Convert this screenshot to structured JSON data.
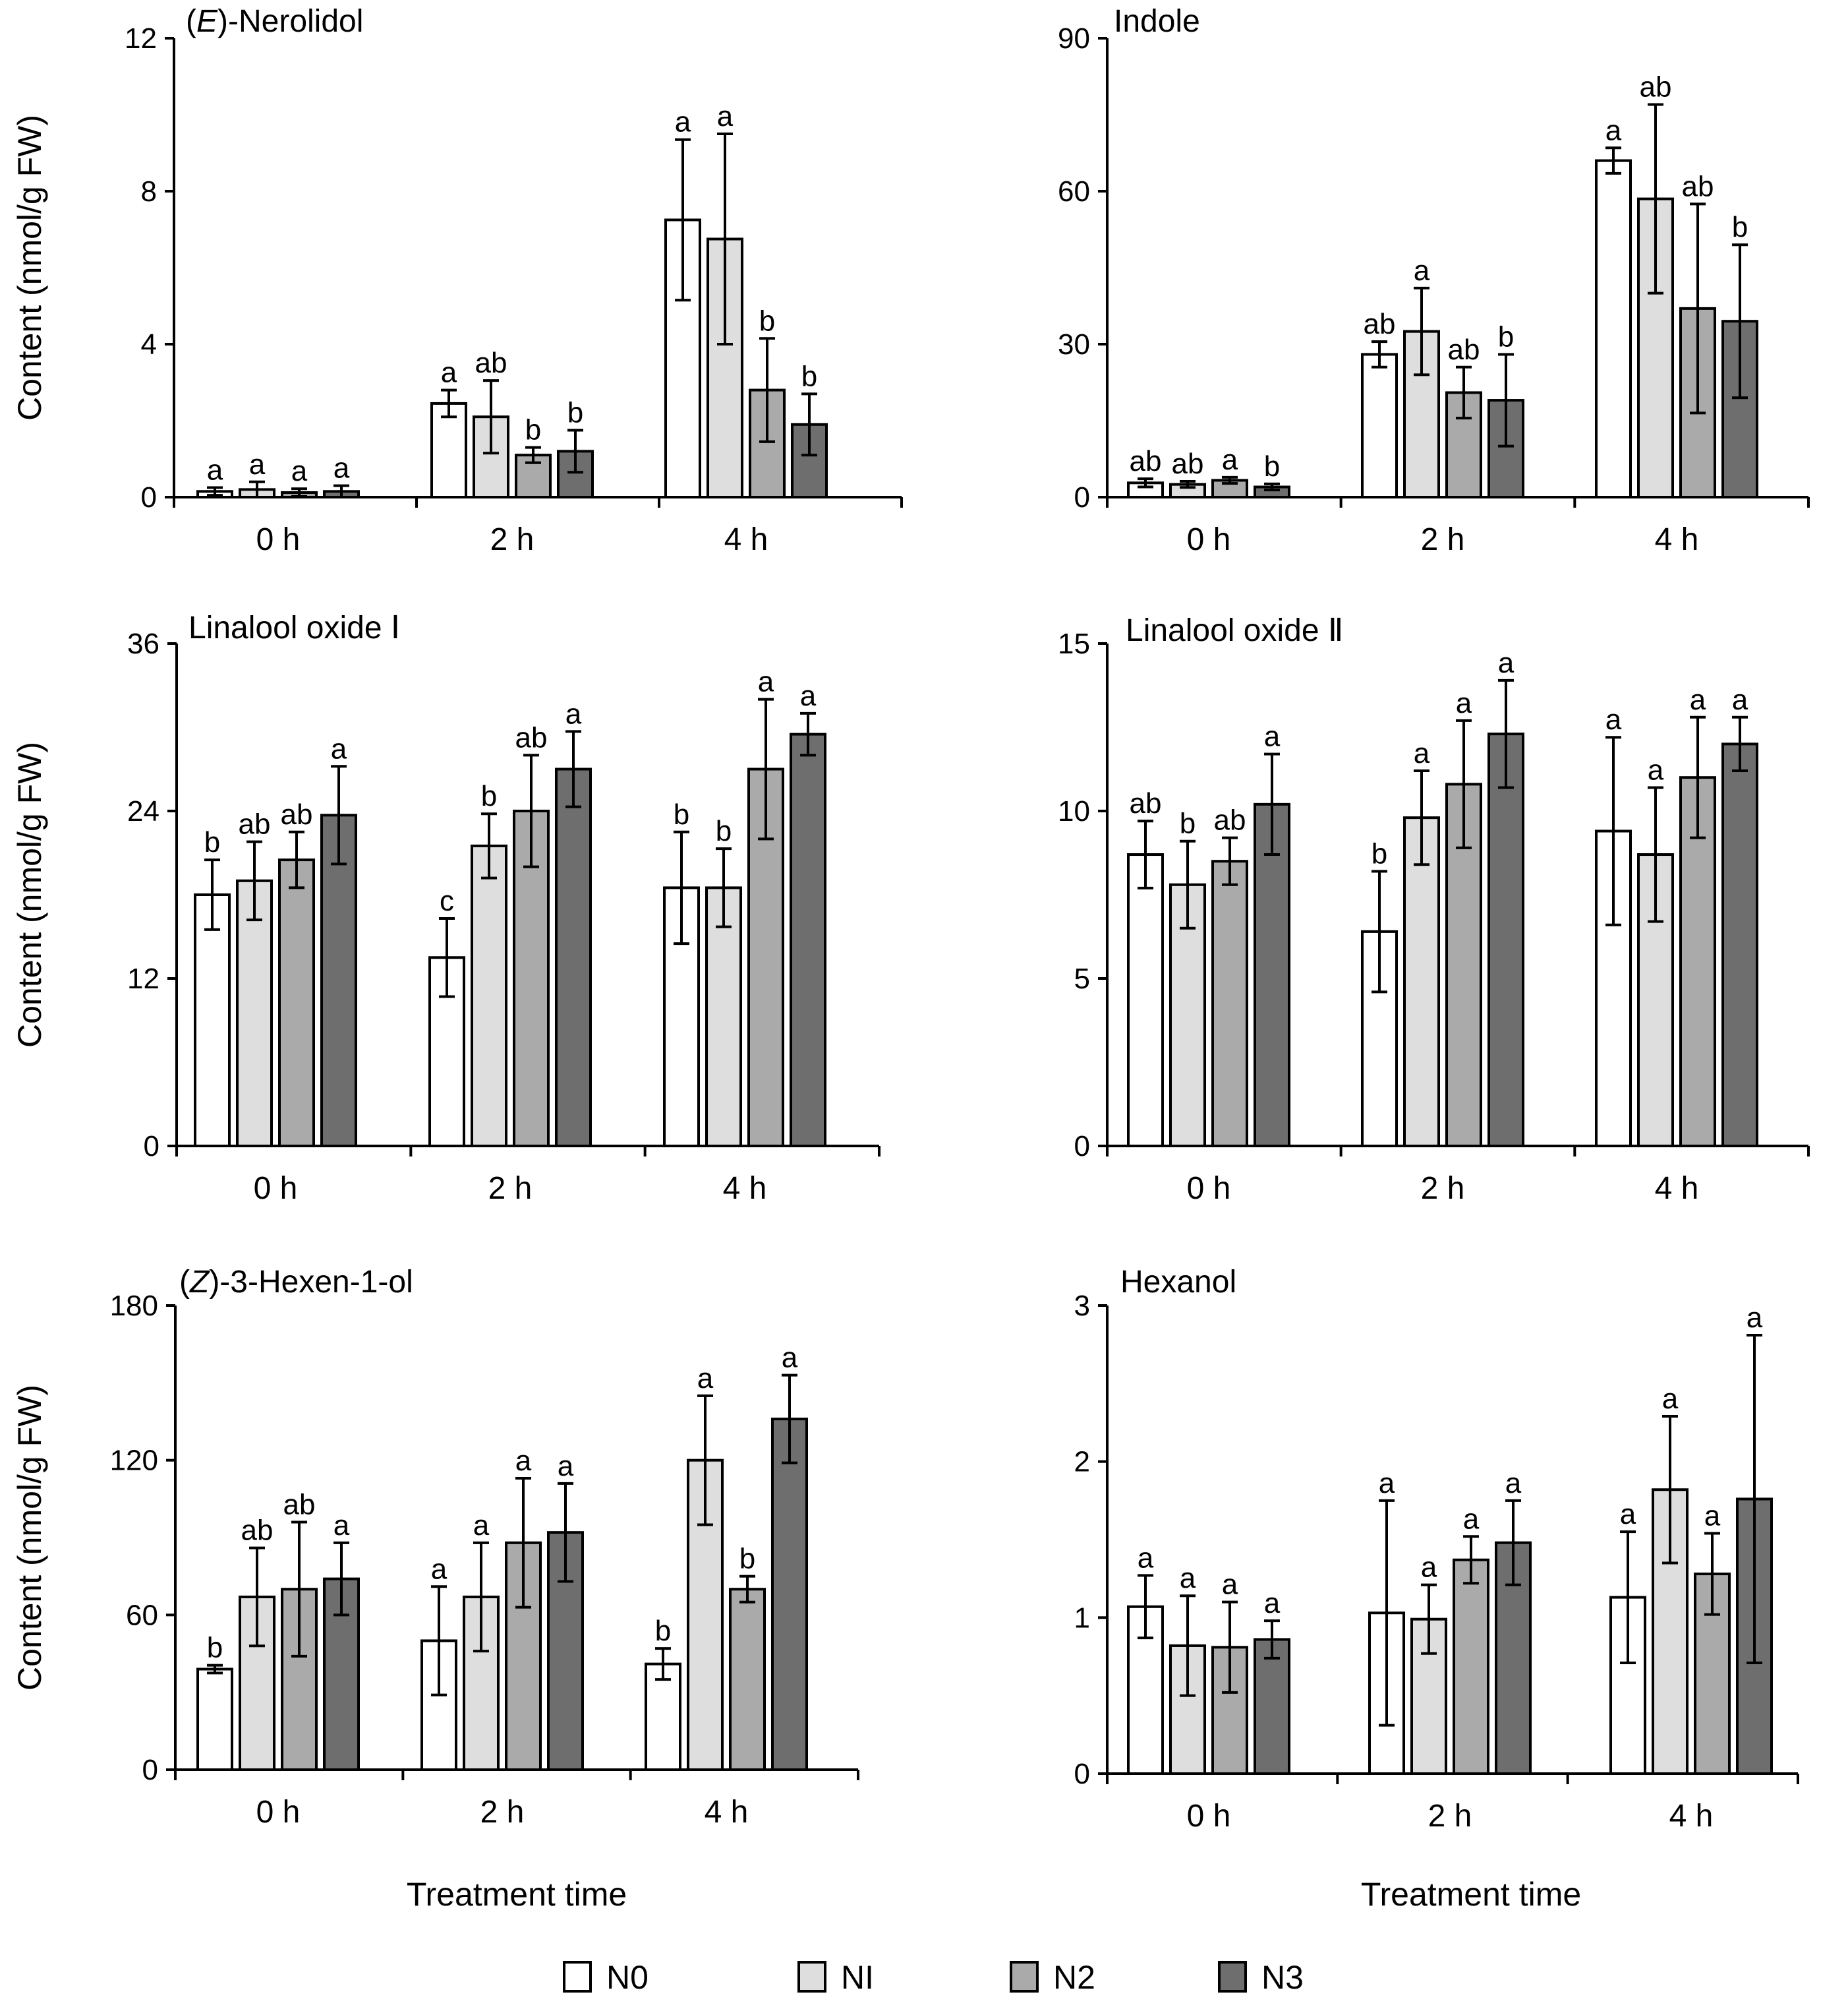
{
  "colors": {
    "N0": "#ffffff",
    "NI": "#dedede",
    "N2": "#aaaaaa",
    "N3": "#6e6e6e",
    "axis": "#000000"
  },
  "legend": [
    {
      "key": "N0",
      "label": "N0"
    },
    {
      "key": "NI",
      "label": "NI"
    },
    {
      "key": "N2",
      "label": "N2"
    },
    {
      "key": "N3",
      "label": "N3"
    }
  ],
  "shared": {
    "ylabel": "Content (nmol/g FW)",
    "xlabel": "Treatment time",
    "categories": [
      "0 h",
      "2 h",
      "4 h"
    ]
  },
  "chart_data": [
    {
      "type": "bar",
      "title_prefix": "(",
      "title_italic": "E",
      "title_suffix": ")-Nerolidol",
      "ylim": [
        0,
        12
      ],
      "yticks": [
        0,
        4,
        8,
        12
      ],
      "categories": [
        "0 h",
        "2 h",
        "4 h"
      ],
      "series": [
        {
          "name": "N0",
          "values": [
            0.15,
            2.45,
            7.25
          ],
          "errors": [
            0.1,
            0.35,
            2.1
          ],
          "letters": [
            "a",
            "a",
            "a"
          ]
        },
        {
          "name": "NI",
          "values": [
            0.2,
            2.1,
            6.75
          ],
          "errors": [
            0.2,
            0.95,
            2.75
          ],
          "letters": [
            "a",
            "ab",
            "a"
          ]
        },
        {
          "name": "N2",
          "values": [
            0.12,
            1.1,
            2.8
          ],
          "errors": [
            0.1,
            0.2,
            1.35
          ],
          "letters": [
            "a",
            "b",
            "b"
          ]
        },
        {
          "name": "N3",
          "values": [
            0.15,
            1.2,
            1.9
          ],
          "errors": [
            0.15,
            0.55,
            0.8
          ],
          "letters": [
            "a",
            "b",
            "b"
          ]
        }
      ]
    },
    {
      "type": "bar",
      "title_prefix": "",
      "title_italic": "",
      "title_suffix": "Indole",
      "ylim": [
        0,
        90
      ],
      "yticks": [
        0,
        30,
        60,
        90
      ],
      "categories": [
        "0 h",
        "2 h",
        "4 h"
      ],
      "series": [
        {
          "name": "N0",
          "values": [
            2.8,
            28,
            66
          ],
          "errors": [
            0.8,
            2.5,
            2.5
          ],
          "letters": [
            "ab",
            "ab",
            "a"
          ]
        },
        {
          "name": "NI",
          "values": [
            2.5,
            32.5,
            58.5
          ],
          "errors": [
            0.6,
            8.5,
            18.5
          ],
          "letters": [
            "ab",
            "a",
            "ab"
          ]
        },
        {
          "name": "N2",
          "values": [
            3.3,
            20.5,
            37
          ],
          "errors": [
            0.6,
            5,
            20.5
          ],
          "letters": [
            "a",
            "ab",
            "ab"
          ]
        },
        {
          "name": "N3",
          "values": [
            2,
            19,
            34.5
          ],
          "errors": [
            0.6,
            9,
            15
          ],
          "letters": [
            "b",
            "b",
            "b"
          ]
        }
      ]
    },
    {
      "type": "bar",
      "title_prefix": "",
      "title_italic": "",
      "title_suffix": "Linalool oxide Ⅰ",
      "ylim": [
        0,
        36
      ],
      "yticks": [
        0,
        12,
        24,
        36
      ],
      "categories": [
        "0 h",
        "2 h",
        "4 h"
      ],
      "series": [
        {
          "name": "N0",
          "values": [
            18,
            13.5,
            18.5
          ],
          "errors": [
            2.5,
            2.8,
            4
          ],
          "letters": [
            "b",
            "c",
            "b"
          ]
        },
        {
          "name": "NI",
          "values": [
            19,
            21.5,
            18.5
          ],
          "errors": [
            2.8,
            2.3,
            2.8
          ],
          "letters": [
            "ab",
            "b",
            "b"
          ]
        },
        {
          "name": "N2",
          "values": [
            20.5,
            24,
            27
          ],
          "errors": [
            2,
            4,
            5
          ],
          "letters": [
            "ab",
            "ab",
            "a"
          ]
        },
        {
          "name": "N3",
          "values": [
            23.7,
            27,
            29.5
          ],
          "errors": [
            3.5,
            2.7,
            1.5
          ],
          "letters": [
            "a",
            "a",
            "a"
          ]
        }
      ]
    },
    {
      "type": "bar",
      "title_prefix": "",
      "title_italic": "",
      "title_suffix": "Linalool oxide Ⅱ",
      "ylim": [
        0,
        15
      ],
      "yticks": [
        0,
        5,
        10,
        15
      ],
      "categories": [
        "0 h",
        "2 h",
        "4 h"
      ],
      "series": [
        {
          "name": "N0",
          "values": [
            8.7,
            6.4,
            9.4
          ],
          "errors": [
            1,
            1.8,
            2.8
          ],
          "letters": [
            "ab",
            "b",
            "a"
          ]
        },
        {
          "name": "NI",
          "values": [
            7.8,
            9.8,
            8.7
          ],
          "errors": [
            1.3,
            1.4,
            2
          ],
          "letters": [
            "b",
            "a",
            "a"
          ]
        },
        {
          "name": "N2",
          "values": [
            8.5,
            10.8,
            11
          ],
          "errors": [
            0.7,
            1.9,
            1.8
          ],
          "letters": [
            "ab",
            "a",
            "a"
          ]
        },
        {
          "name": "N3",
          "values": [
            10.2,
            12.3,
            12
          ],
          "errors": [
            1.5,
            1.6,
            0.8
          ],
          "letters": [
            "a",
            "a",
            "a"
          ]
        }
      ]
    },
    {
      "type": "bar",
      "title_prefix": "(",
      "title_italic": "Z",
      "title_suffix": ")-3-Hexen-1-ol",
      "ylim": [
        0,
        180
      ],
      "yticks": [
        0,
        60,
        120,
        180
      ],
      "categories": [
        "0 h",
        "2 h",
        "4 h"
      ],
      "series": [
        {
          "name": "N0",
          "values": [
            39,
            50,
            41
          ],
          "errors": [
            1.5,
            21,
            6
          ],
          "letters": [
            "b",
            "a",
            "b"
          ]
        },
        {
          "name": "NI",
          "values": [
            67,
            67,
            120
          ],
          "errors": [
            19,
            21,
            25
          ],
          "letters": [
            "ab",
            "a",
            "a"
          ]
        },
        {
          "name": "N2",
          "values": [
            70,
            88,
            70
          ],
          "errors": [
            26,
            25,
            5
          ],
          "letters": [
            "ab",
            "a",
            "b"
          ]
        },
        {
          "name": "N3",
          "values": [
            74,
            92,
            136
          ],
          "errors": [
            14,
            19,
            17
          ],
          "letters": [
            "a",
            "a",
            "a"
          ]
        }
      ]
    },
    {
      "type": "bar",
      "title_prefix": "",
      "title_italic": "",
      "title_suffix": "Hexanol",
      "ylim": [
        0,
        3
      ],
      "yticks": [
        0,
        1,
        2,
        3
      ],
      "categories": [
        "0 h",
        "2 h",
        "4 h"
      ],
      "series": [
        {
          "name": "N0",
          "values": [
            1.07,
            1.03,
            1.13
          ],
          "errors": [
            0.2,
            0.72,
            0.42
          ],
          "letters": [
            "a",
            "a",
            "a"
          ]
        },
        {
          "name": "NI",
          "values": [
            0.82,
            0.99,
            1.82
          ],
          "errors": [
            0.32,
            0.22,
            0.47
          ],
          "letters": [
            "a",
            "a",
            "a"
          ]
        },
        {
          "name": "N2",
          "values": [
            0.81,
            1.37,
            1.28
          ],
          "errors": [
            0.29,
            0.15,
            0.26
          ],
          "letters": [
            "a",
            "a",
            "a"
          ]
        },
        {
          "name": "N3",
          "values": [
            0.86,
            1.48,
            1.76
          ],
          "errors": [
            0.12,
            0.27,
            1.05
          ],
          "letters": [
            "a",
            "a",
            "a"
          ]
        }
      ]
    }
  ]
}
